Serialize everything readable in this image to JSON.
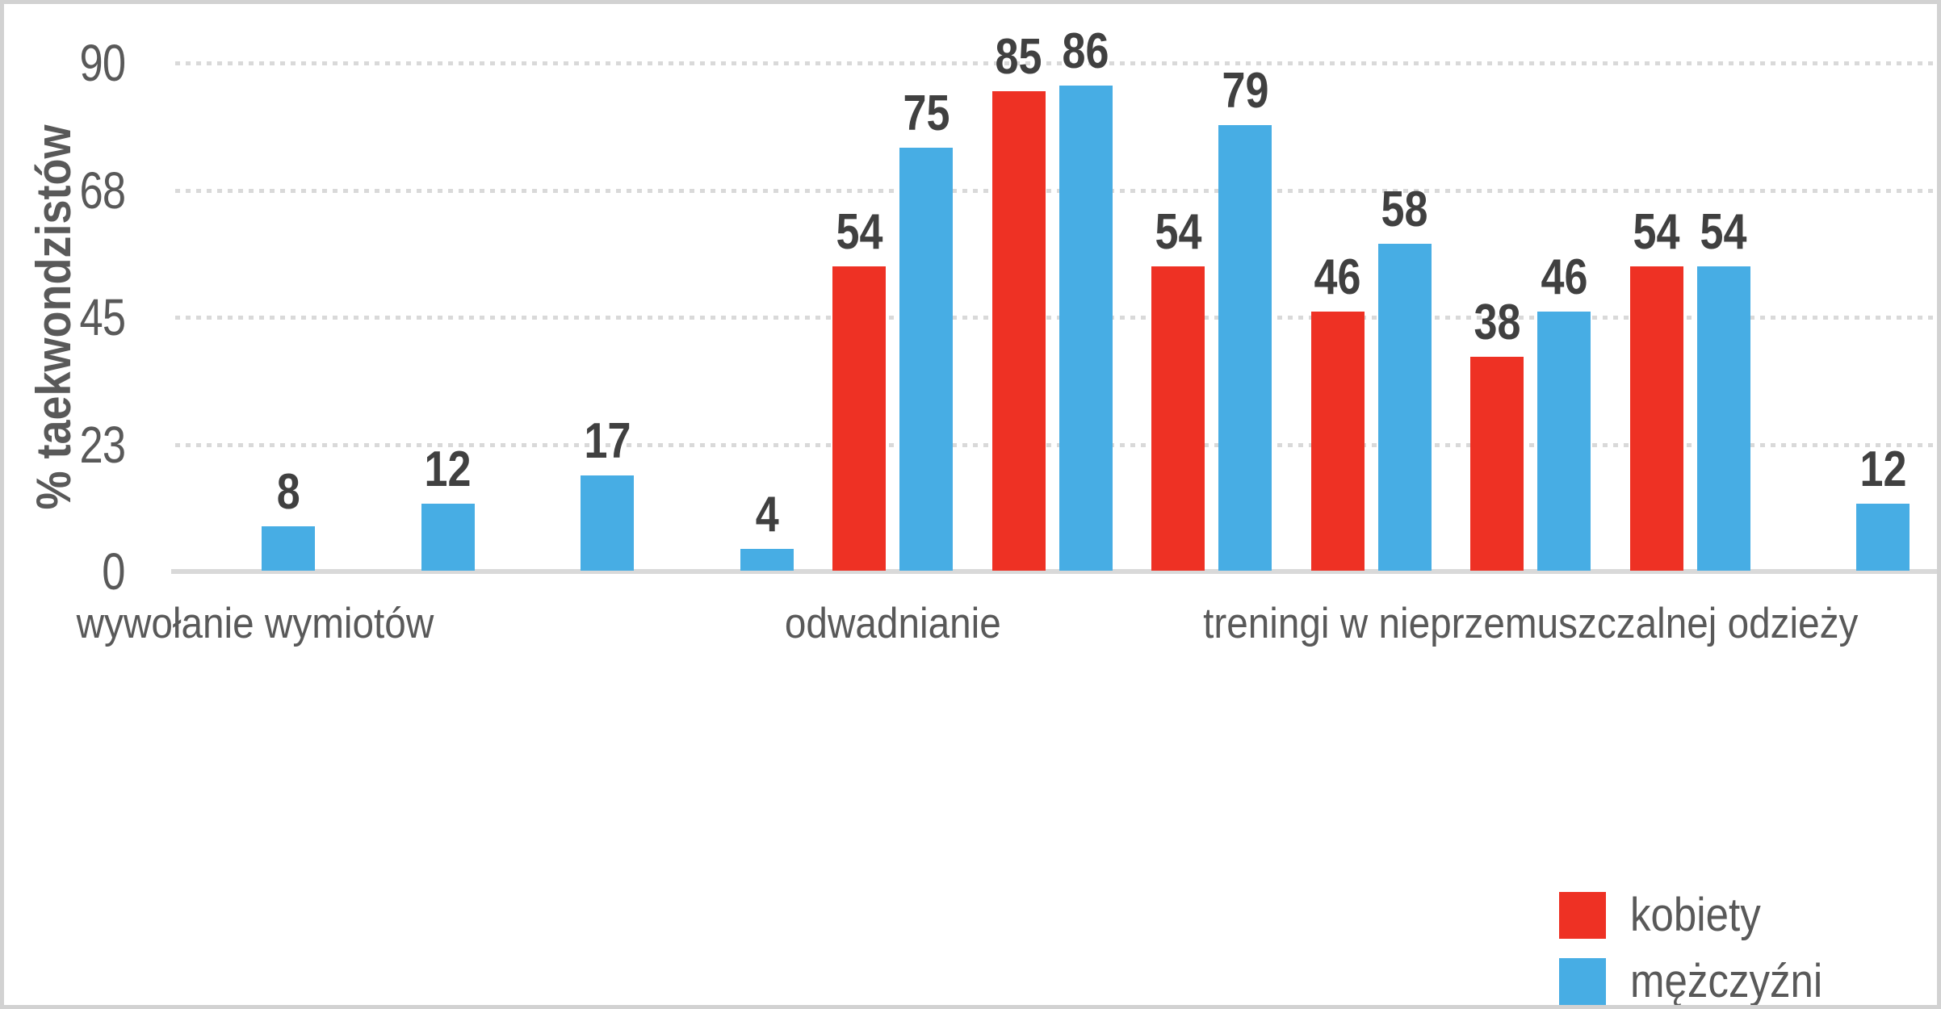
{
  "chart_data": {
    "type": "bar",
    "title": "",
    "ylabel": "% taekwondzistów",
    "xlabel": "",
    "ylim": [
      0,
      90
    ],
    "grid": "horizontal-dotted",
    "legend_position": "bottom-right",
    "y_ticks": [
      {
        "label": "0",
        "value": 0
      },
      {
        "label": "23",
        "value": 22.5
      },
      {
        "label": "45",
        "value": 45
      },
      {
        "label": "68",
        "value": 67.5
      },
      {
        "label": "90",
        "value": 90
      }
    ],
    "categories": [
      "wywołanie wymiotów",
      "",
      "",
      "",
      "odwadnianie",
      "",
      "",
      "",
      "treningi w nieprzemuszczalnej odzieży",
      "",
      ""
    ],
    "series": [
      {
        "name": "kobiety",
        "color": "#ee3124",
        "values": [
          0,
          0,
          0,
          0,
          54,
          85,
          54,
          46,
          38,
          54,
          0
        ]
      },
      {
        "name": "mężczyźni",
        "color": "#47ade4",
        "values": [
          8,
          12,
          17,
          4,
          75,
          86,
          79,
          58,
          46,
          54,
          12
        ]
      }
    ],
    "value_labels_shown": true,
    "note_zero_values_hidden": true
  },
  "style_colors": {
    "grid": "#d9d9d9",
    "axis_line": "#d9d9d9",
    "tick_text": "#595959",
    "value_label_text": "#404040",
    "frame_border": "#d2d2d2"
  }
}
